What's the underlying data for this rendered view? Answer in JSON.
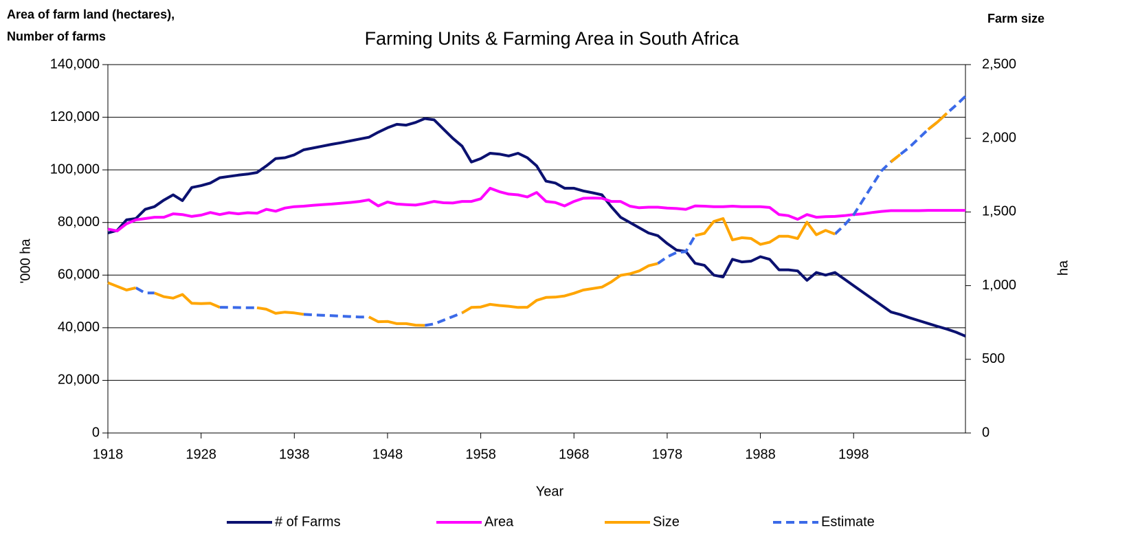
{
  "chart_data": {
    "type": "line",
    "title": "Farming Units & Farming Area in South Africa",
    "left_heading": [
      "Area of farm land (hectares),",
      "Number of farms"
    ],
    "right_heading": "Farm size",
    "ylabel": "'000 ha",
    "y2label": "ha",
    "xlabel": "Year",
    "x": [
      1918,
      1919,
      1920,
      1921,
      1922,
      1923,
      1924,
      1925,
      1926,
      1927,
      1928,
      1929,
      1930,
      1931,
      1932,
      1933,
      1934,
      1935,
      1936,
      1937,
      1938,
      1939,
      1940,
      1941,
      1942,
      1943,
      1944,
      1945,
      1946,
      1947,
      1948,
      1949,
      1950,
      1951,
      1952,
      1953,
      1954,
      1955,
      1956,
      1957,
      1958,
      1959,
      1960,
      1961,
      1962,
      1963,
      1964,
      1965,
      1966,
      1967,
      1968,
      1969,
      1970,
      1971,
      1972,
      1973,
      1974,
      1975,
      1976,
      1977,
      1978,
      1979,
      1980,
      1981,
      1982,
      1983,
      1984,
      1985,
      1986,
      1987,
      1988,
      1989,
      1990,
      1991,
      1992,
      1993,
      1994,
      1995,
      1996,
      1997,
      1998,
      1999,
      2000,
      2001,
      2002,
      2003,
      2004,
      2005,
      2006,
      2007,
      2008,
      2009,
      2010
    ],
    "xlim": [
      1918,
      2010
    ],
    "xticks": [
      1918,
      1928,
      1938,
      1948,
      1958,
      1968,
      1978,
      1988,
      1998
    ],
    "ylim": [
      0,
      140000
    ],
    "yticks": [
      0,
      {
        "value": 20000,
        "label": "20,000"
      },
      {
        "value": 40000,
        "label": "40,000"
      },
      {
        "value": 60000,
        "label": "60,000"
      },
      {
        "value": 80000,
        "label": "80,000"
      },
      {
        "value": 100000,
        "label": "100,000"
      },
      {
        "value": 120000,
        "label": "120,000"
      },
      {
        "value": 140000,
        "label": "140,000"
      }
    ],
    "y2lim": [
      0,
      2500
    ],
    "y2ticks": [
      0,
      500,
      {
        "value": 1000,
        "label": "1,000"
      },
      {
        "value": 1500,
        "label": "1,500"
      },
      {
        "value": 2000,
        "label": "2,000"
      },
      {
        "value": 2500,
        "label": "2,500"
      }
    ],
    "grid": true,
    "series": [
      {
        "name": "# of Farms",
        "color": "#0b1170",
        "dash": false,
        "values": [
          76000,
          77000,
          81000,
          81500,
          85000,
          86000,
          88500,
          90500,
          88300,
          93300,
          94000,
          95000,
          97000,
          97500,
          98000,
          98400,
          99000,
          101500,
          104300,
          104600,
          105700,
          107600,
          108300,
          109000,
          109700,
          110300,
          111000,
          111700,
          112400,
          114300,
          116000,
          117300,
          117000,
          118000,
          119500,
          119000,
          115500,
          112000,
          109000,
          103000,
          104300,
          106300,
          106000,
          105300,
          106300,
          104600,
          101500,
          95700,
          95000,
          93000,
          93000,
          92000,
          91300,
          90500,
          86000,
          82000,
          80000,
          78000,
          76000,
          75000,
          72000,
          69500,
          69000,
          64500,
          63700,
          60000,
          59300,
          66000,
          65000,
          65300,
          67000,
          66000,
          62000,
          62000,
          61600,
          58000,
          61000,
          60000,
          61000,
          58500,
          56000,
          53500,
          51000,
          48500,
          46000,
          45000,
          43800,
          42700,
          41600,
          40500,
          39500,
          38300,
          36800
        ]
      },
      {
        "name": "Area",
        "color": "#ff00ff",
        "dash": false,
        "values": [
          77500,
          76800,
          79500,
          81000,
          81500,
          82000,
          82000,
          83300,
          83000,
          82300,
          82800,
          83800,
          83000,
          83700,
          83300,
          83700,
          83500,
          85000,
          84300,
          85500,
          86000,
          86200,
          86500,
          86800,
          87000,
          87300,
          87600,
          88000,
          88600,
          86300,
          87800,
          87000,
          86800,
          86600,
          87200,
          88000,
          87500,
          87400,
          88000,
          88000,
          89000,
          93000,
          91700,
          90800,
          90500,
          89700,
          91400,
          88000,
          87600,
          86300,
          88000,
          89200,
          89300,
          89200,
          88000,
          88000,
          86200,
          85600,
          85800,
          85800,
          85500,
          85300,
          85000,
          86300,
          86200,
          86000,
          86000,
          86200,
          86000,
          86000,
          86000,
          85700,
          83000,
          82600,
          81200,
          83000,
          82000,
          82200,
          82300,
          82600,
          83000,
          83300,
          83800,
          84200,
          84500,
          84500,
          84500,
          84500,
          84600,
          84600,
          84600,
          84600,
          84600
        ]
      },
      {
        "name": "Estimate",
        "color": "#3b6ae8",
        "dash": true,
        "axis": "y2",
        "values": [
          null,
          null,
          null,
          985,
          950,
          950,
          null,
          null,
          null,
          null,
          null,
          null,
          853,
          852,
          851,
          850,
          850,
          null,
          null,
          null,
          null,
          805,
          802,
          799,
          796,
          793,
          790,
          787,
          788,
          null,
          null,
          null,
          null,
          null,
          730,
          740,
          765,
          790,
          815,
          null,
          null,
          null,
          null,
          null,
          null,
          null,
          null,
          null,
          null,
          null,
          null,
          null,
          null,
          null,
          null,
          null,
          null,
          null,
          null,
          1150,
          1195,
          1225,
          1230,
          1340,
          null,
          null,
          null,
          null,
          null,
          null,
          null,
          null,
          null,
          null,
          null,
          null,
          null,
          null,
          1350,
          1410,
          1480,
          1580,
          1680,
          1780,
          1840,
          1890,
          1940,
          2000,
          2060,
          2110,
          2170,
          2225,
          2285
        ]
      },
      {
        "name": "Size",
        "color": "#ffa500",
        "dash": false,
        "axis": "y2",
        "values": [
          1020,
          995,
          970,
          985,
          null,
          950,
          925,
          915,
          940,
          880,
          878,
          880,
          853,
          null,
          null,
          null,
          850,
          840,
          812,
          820,
          815,
          805,
          null,
          null,
          null,
          null,
          null,
          null,
          788,
          755,
          757,
          742,
          742,
          732,
          730,
          null,
          null,
          null,
          815,
          852,
          855,
          873,
          865,
          860,
          852,
          853,
          900,
          920,
          922,
          930,
          948,
          970,
          980,
          990,
          1025,
          1070,
          1080,
          1100,
          1135,
          1150,
          null,
          null,
          null,
          1340,
          1355,
          1435,
          1455,
          1310,
          1325,
          1320,
          1280,
          1295,
          1335,
          1335,
          1320,
          1430,
          1345,
          1375,
          1350,
          null,
          null,
          null,
          null,
          null,
          1840,
          1890,
          null,
          null,
          2060,
          2110,
          2170,
          null,
          null
        ]
      }
    ],
    "legend_order": [
      0,
      1,
      3,
      2
    ]
  }
}
